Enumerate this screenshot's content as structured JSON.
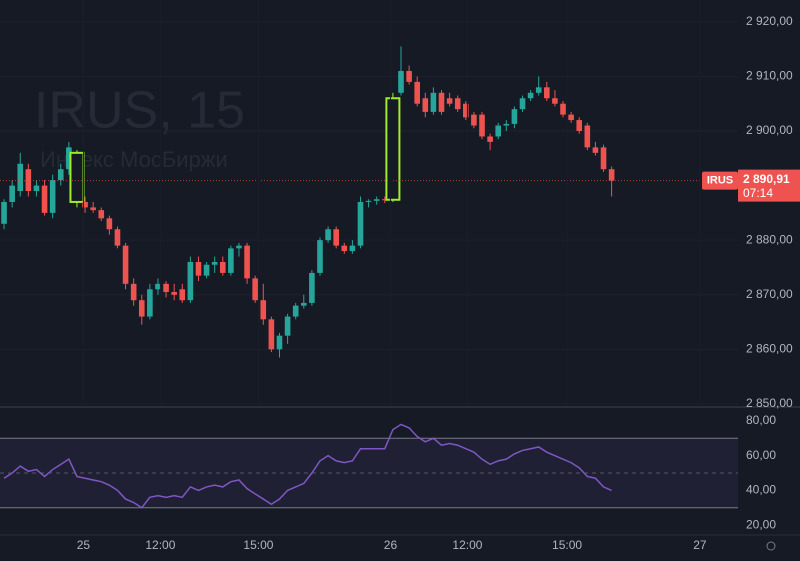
{
  "chart_data": [
    {
      "type": "candlestick",
      "watermark": "IRUS, 15",
      "watermark_subtitle": "Индекс МосБиржи",
      "symbol": "IRUS",
      "open": [
        2883,
        2887,
        2889,
        2893,
        2889,
        2890,
        2885,
        2891,
        2893,
        2896,
        2887,
        2886,
        2885.5,
        2884,
        2882,
        2879,
        2872,
        2869,
        2866,
        2871,
        2872,
        2870.5,
        2871,
        2869,
        2876,
        2873.5,
        2875.5,
        2876,
        2874,
        2878.5,
        2879,
        2873,
        2869,
        2865.5,
        2860,
        2862.5,
        2866,
        2868,
        2868.5,
        2874,
        2880,
        2882,
        2879,
        2878,
        2879,
        2887,
        2887.2,
        2887.5,
        2887.4,
        2907,
        2911,
        2909,
        2906,
        2903.5,
        2907,
        2906,
        2906,
        2905,
        2903,
        2903,
        2899,
        2899,
        2901,
        2901.3,
        2904,
        2906,
        2907,
        2908,
        2906,
        2905,
        2903,
        2902,
        2901,
        2897,
        2897,
        2893
      ],
      "high": [
        2887.5,
        2891,
        2896,
        2894,
        2891,
        2891,
        2892,
        2894,
        2898,
        2896.5,
        2888,
        2887,
        2886,
        2884.5,
        2882.5,
        2879.5,
        2873,
        2870,
        2872,
        2873,
        2872.5,
        2872,
        2872,
        2877,
        2877,
        2876,
        2877,
        2877,
        2879,
        2879.5,
        2879.5,
        2873.5,
        2872,
        2866,
        2863,
        2866.5,
        2868.5,
        2870,
        2874.5,
        2880.5,
        2882.5,
        2882.5,
        2879.5,
        2880,
        2888,
        2887.5,
        2888,
        2888,
        2907,
        2915.5,
        2912,
        2910,
        2907,
        2908,
        2907.5,
        2907,
        2906.5,
        2905.5,
        2903.5,
        2903.5,
        2899.5,
        2901.5,
        2902,
        2904.5,
        2906.5,
        2907.5,
        2910,
        2909,
        2907.5,
        2905.5,
        2903.5,
        2902.5,
        2901.5,
        2898,
        2897.5,
        2893.5
      ],
      "low": [
        2882,
        2886,
        2888,
        2888,
        2888,
        2884.5,
        2884,
        2890,
        2892,
        2886,
        2885,
        2885,
        2883.5,
        2881,
        2878.5,
        2871,
        2868,
        2864.5,
        2865.5,
        2870,
        2869.5,
        2869,
        2868.5,
        2868.5,
        2872.5,
        2873,
        2874,
        2873.5,
        2873.5,
        2877,
        2872,
        2868.5,
        2864.5,
        2859.5,
        2858.5,
        2861,
        2865.5,
        2867.5,
        2868,
        2873.5,
        2879.5,
        2878.5,
        2877.5,
        2877.5,
        2878.5,
        2886,
        2886.5,
        2886.8,
        2887,
        2906.5,
        2908.5,
        2904.5,
        2902.5,
        2903,
        2903,
        2904.5,
        2903.5,
        2902,
        2900.5,
        2898.5,
        2896.5,
        2898.5,
        2900,
        2900.5,
        2903.5,
        2905.5,
        2906.5,
        2905.5,
        2904.5,
        2902.5,
        2901.5,
        2899.5,
        2896.5,
        2895.5,
        2892.5,
        2888
      ],
      "close": [
        2887,
        2890,
        2894,
        2889,
        2890,
        2885,
        2891,
        2893,
        2897,
        2887,
        2886,
        2885.5,
        2884,
        2882,
        2879,
        2872,
        2869,
        2866,
        2871,
        2872,
        2870.5,
        2870,
        2869,
        2876,
        2873.5,
        2875.5,
        2876,
        2874,
        2878.5,
        2879,
        2873,
        2869,
        2865.5,
        2860,
        2862.5,
        2866,
        2868,
        2868.5,
        2874,
        2880,
        2882,
        2879,
        2878,
        2879,
        2887,
        2887.2,
        2887.5,
        2887.4,
        2906,
        2911,
        2909,
        2905,
        2903.5,
        2907,
        2903.5,
        2905,
        2904,
        2902.5,
        2901,
        2899,
        2898,
        2901,
        2901.3,
        2904,
        2906,
        2907,
        2908,
        2906,
        2905,
        2903,
        2902,
        2900,
        2897,
        2896,
        2893,
        2890.91
      ],
      "up_color": "#26a69a",
      "down_color": "#ef5350",
      "highlight": [
        9,
        48
      ],
      "highlight_color": "#9cee2a",
      "grid": true,
      "xlim": [
        -0.5,
        90.6
      ],
      "ylim": [
        2849.8,
        2924.0
      ],
      "yticks": [
        {
          "value": 2850,
          "label": "2 850,00"
        },
        {
          "value": 2860,
          "label": "2 860,00"
        },
        {
          "value": 2870,
          "label": "2 870,00"
        },
        {
          "value": 2880,
          "label": "2 880,00"
        },
        {
          "value": 2900,
          "label": "2 900,00"
        },
        {
          "value": 2910,
          "label": "2 910,00"
        },
        {
          "value": 2920,
          "label": "2 920,00"
        }
      ],
      "last_price": {
        "value": 2890.91,
        "label": "2 890,91"
      },
      "countdown": "07:14"
    },
    {
      "type": "line",
      "series": [
        {
          "color": "#7e57c2",
          "values": [
            47,
            50,
            54,
            51,
            52,
            48,
            52,
            55,
            58,
            48,
            47,
            46,
            45,
            43,
            40,
            35,
            33,
            30,
            36,
            37,
            36,
            37,
            36,
            42,
            40,
            42,
            43,
            42,
            45,
            46,
            41,
            38,
            35,
            32,
            35,
            40,
            42,
            44,
            50,
            57,
            60,
            57,
            56,
            57,
            64,
            64,
            64,
            64,
            75,
            78,
            76,
            71,
            68,
            70,
            66,
            67,
            66,
            64,
            62,
            58,
            55,
            57,
            58,
            61,
            63,
            64,
            65,
            62,
            60,
            58,
            56,
            53,
            48,
            47,
            42,
            40
          ]
        }
      ],
      "bands": [
        30,
        70
      ],
      "band_color": "#7e57c2",
      "midline": 50,
      "xlim": [
        -0.5,
        90.6
      ],
      "ylim": [
        14.3,
        86.3
      ],
      "yticks": [
        {
          "value": 20,
          "label": "20,00"
        },
        {
          "value": 40,
          "label": "40,00"
        },
        {
          "value": 60,
          "label": "60,00"
        },
        {
          "value": 80,
          "label": "80,00"
        }
      ],
      "xticks": [
        {
          "value": 9.8,
          "label": "25"
        },
        {
          "value": 19.3,
          "label": "12:00"
        },
        {
          "value": 31.4,
          "label": "15:00"
        },
        {
          "value": 47.7,
          "label": "26"
        },
        {
          "value": 57.2,
          "label": "12:00"
        },
        {
          "value": 69.5,
          "label": "15:00"
        },
        {
          "value": 85.9,
          "label": "27"
        }
      ]
    }
  ]
}
